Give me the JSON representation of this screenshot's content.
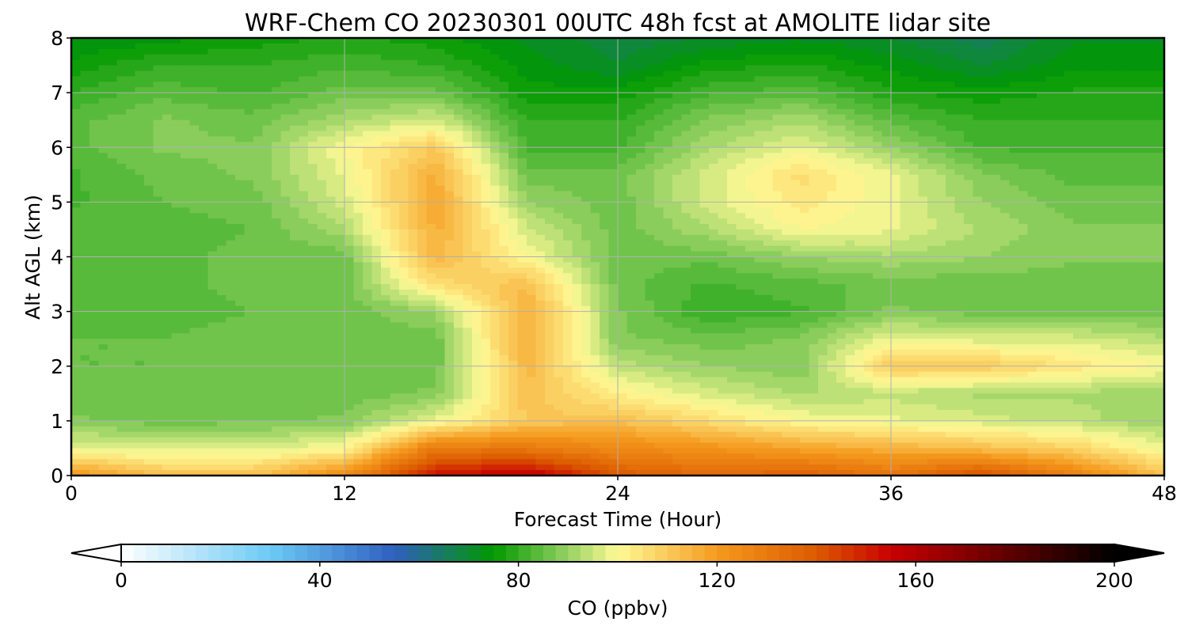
{
  "chart_data": {
    "type": "heatmap",
    "title": "WRF-Chem CO  20230301 00UTC 48h fcst at AMOLITE lidar site",
    "xlabel": "Forecast Time (Hour)",
    "ylabel": "Alt AGL (km)",
    "xlim": [
      0,
      48
    ],
    "ylim": [
      0,
      8
    ],
    "xticks": [
      0,
      12,
      24,
      36,
      48
    ],
    "xtick_labels": [
      "0",
      "12",
      "24",
      "36",
      "48"
    ],
    "yticks": [
      0,
      1,
      2,
      3,
      4,
      5,
      6,
      7,
      8
    ],
    "ytick_labels": [
      "0",
      "1",
      "2",
      "3",
      "4",
      "5",
      "6",
      "7",
      "8"
    ],
    "grid": true,
    "field": {
      "x": [
        0,
        4,
        8,
        12,
        16,
        20,
        24,
        28,
        32,
        36,
        40,
        44,
        48
      ],
      "y": [
        0,
        0.5,
        1,
        1.5,
        2,
        2.5,
        3,
        3.5,
        4,
        4.5,
        5,
        5.5,
        6,
        6.5,
        7,
        7.5,
        8
      ],
      "z": [
        [
          122,
          112,
          112,
          125,
          152,
          158,
          140,
          135,
          138,
          132,
          142,
          128,
          112
        ],
        [
          98,
          96,
          96,
          100,
          130,
          130,
          125,
          122,
          118,
          115,
          112,
          108,
          98
        ],
        [
          88,
          86,
          87,
          88,
          98,
          110,
          112,
          106,
          100,
          98,
          96,
          94,
          90
        ],
        [
          86,
          85,
          86,
          86,
          88,
          112,
          102,
          96,
          92,
          94,
          92,
          92,
          90
        ],
        [
          85,
          85,
          86,
          86,
          86,
          114,
          94,
          90,
          88,
          110,
          110,
          104,
          100
        ],
        [
          85,
          85,
          86,
          86,
          86,
          116,
          88,
          86,
          88,
          98,
          96,
          96,
          93
        ],
        [
          84,
          84,
          85,
          86,
          90,
          116,
          88,
          80,
          82,
          88,
          86,
          86,
          86
        ],
        [
          84,
          84,
          86,
          86,
          106,
          112,
          86,
          82,
          84,
          86,
          86,
          86,
          86
        ],
        [
          84,
          84,
          86,
          86,
          114,
          100,
          86,
          86,
          90,
          92,
          90,
          88,
          88
        ],
        [
          84,
          84,
          85,
          92,
          116,
          96,
          86,
          92,
          100,
          98,
          92,
          88,
          88
        ],
        [
          82,
          85,
          86,
          96,
          117,
          90,
          86,
          96,
          104,
          98,
          90,
          86,
          86
        ],
        [
          82,
          86,
          88,
          98,
          116,
          86,
          86,
          96,
          106,
          98,
          88,
          84,
          84
        ],
        [
          84,
          88,
          88,
          100,
          110,
          82,
          82,
          92,
          98,
          90,
          82,
          82,
          82
        ],
        [
          84,
          88,
          86,
          92,
          96,
          80,
          80,
          88,
          92,
          84,
          80,
          80,
          80
        ],
        [
          80,
          84,
          82,
          86,
          86,
          76,
          76,
          82,
          84,
          78,
          76,
          78,
          78
        ],
        [
          76,
          80,
          80,
          82,
          80,
          74,
          70,
          76,
          78,
          74,
          70,
          74,
          74
        ],
        [
          72,
          74,
          76,
          78,
          76,
          72,
          68,
          70,
          72,
          70,
          66,
          72,
          72
        ]
      ]
    },
    "colorbar": {
      "label": "CO  (ppbv)",
      "min": 0,
      "max": 200,
      "step": 2.5,
      "extend": "both",
      "ticks": [
        0,
        40,
        80,
        120,
        160,
        200
      ],
      "tick_labels": [
        "0",
        "40",
        "80",
        "120",
        "160",
        "200"
      ],
      "colors": [
        "#ffffff",
        "#6ccaf5",
        "#2f5fbf",
        "#009900",
        "#96d264",
        "#fffa96",
        "#f59a1e",
        "#dc5a00",
        "#c80000",
        "#000000"
      ],
      "stops": [
        0,
        30,
        55,
        75,
        90,
        100,
        120,
        140,
        155,
        200
      ]
    }
  }
}
